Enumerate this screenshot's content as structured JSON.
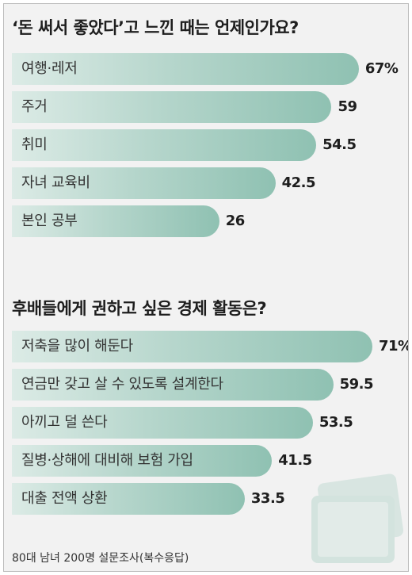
{
  "chart_data": [
    {
      "type": "bar",
      "orientation": "horizontal",
      "title": "‘돈 써서 좋았다’고 느낀 때는 언제인가요?",
      "categories": [
        "여행·레저",
        "주거",
        "취미",
        "자녀 교육비",
        "본인 공부"
      ],
      "values": [
        67,
        59,
        54.5,
        42.5,
        26
      ],
      "value_labels": [
        "67%",
        "59",
        "54.5",
        "42.5",
        "26"
      ],
      "unit": "%",
      "xlim": [
        0,
        71
      ]
    },
    {
      "type": "bar",
      "orientation": "horizontal",
      "title": "후배들에게 권하고 싶은 경제 활동은?",
      "categories": [
        "저축을 많이 해둔다",
        "연금만 갖고 살 수 있도록 설계한다",
        "아끼고 덜 쓴다",
        "질병·상해에 대비해 보험 가입",
        "대출 전액 상환"
      ],
      "values": [
        71,
        59.5,
        53.5,
        41.5,
        33.5
      ],
      "value_labels": [
        "71%",
        "59.5",
        "53.5",
        "41.5",
        "33.5"
      ],
      "unit": "%",
      "xlim": [
        0,
        71
      ]
    }
  ],
  "footnote": "80대 남녀 200명 설문조사(복수응답)",
  "colors": {
    "bar_start": "#dcebe6",
    "bar_end": "#8fc1b2",
    "background": "#f2f2f2"
  },
  "decoration": "tablet-icon"
}
